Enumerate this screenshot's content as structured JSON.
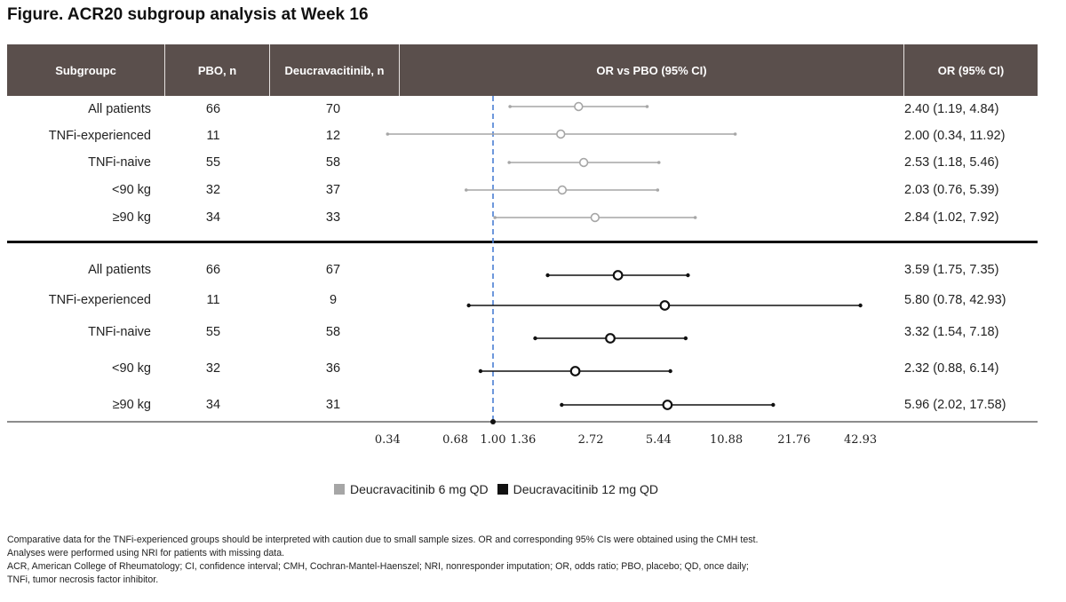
{
  "title": "Figure. ACR20 subgroup analysis at Week 16",
  "header": {
    "subgroup": "Subgroupc",
    "pbo": "PBO, n",
    "deucra": "Deucravacitinib, n",
    "plot": "OR vs PBO (95% CI)",
    "orci": "OR (95% CI)"
  },
  "rows_6mg": [
    {
      "subgroup": "All patients",
      "pbo": "66",
      "deucra": "70",
      "orci": "2.40 (1.19, 4.84)"
    },
    {
      "subgroup": "TNFi-experienced",
      "pbo": "11",
      "deucra": "12",
      "orci": "2.00 (0.34, 11.92)"
    },
    {
      "subgroup": "TNFi-naive",
      "pbo": "55",
      "deucra": "58",
      "orci": "2.53 (1.18, 5.46)"
    },
    {
      "subgroup": "<90 kg",
      "pbo": "32",
      "deucra": "37",
      "orci": "2.03 (0.76, 5.39)"
    },
    {
      "subgroup": "≥90 kg",
      "pbo": "34",
      "deucra": "33",
      "orci": "2.84 (1.02, 7.92)"
    }
  ],
  "rows_12mg": [
    {
      "subgroup": "All patients",
      "pbo": "66",
      "deucra": "67",
      "orci": "3.59 (1.75, 7.35)"
    },
    {
      "subgroup": "TNFi-experienced",
      "pbo": "11",
      "deucra": "9",
      "orci": "5.80 (0.78, 42.93)"
    },
    {
      "subgroup": "TNFi-naive",
      "pbo": "55",
      "deucra": "58",
      "orci": "3.32 (1.54, 7.18)"
    },
    {
      "subgroup": "<90 kg",
      "pbo": "32",
      "deucra": "36",
      "orci": "2.32 (0.88, 6.14)"
    },
    {
      "subgroup": "≥90 kg",
      "pbo": "34",
      "deucra": "31",
      "orci": "5.96 (2.02, 17.58)"
    }
  ],
  "legend": {
    "item1": "Deucravacitinib 6 mg QD",
    "item2": "Deucravacitinib 12 mg QD"
  },
  "footnote": {
    "line1": "Comparative data for the TNFi-experienced groups should be interpreted with caution due to small sample sizes.  OR and corresponding 95% CIs were obtained using the CMH test.",
    "line2": "Analyses were performed using NRI for patients with missing data.",
    "line3": "ACR, American College of Rheumatology; CI, confidence interval; CMH, Cochran-Mantel-Haenszel; NRI, nonresponder imputation; OR, odds ratio; PBO, placebo; QD, once daily;",
    "line4": "TNFi, tumor necrosis factor inhibitor."
  },
  "colors": {
    "header_bg": "#5a4f4c",
    "series_6mg": "#a6a6a6",
    "series_12mg": "#111111",
    "reference_line": "#4a7fd4"
  },
  "chart_data": {
    "type": "forest",
    "xscale": "log",
    "reference": 1.0,
    "xticks": [
      0.34,
      0.68,
      1.0,
      1.36,
      2.72,
      5.44,
      10.88,
      21.76,
      42.93
    ],
    "xtick_labels": [
      "0.34",
      "0.68",
      "1.00",
      "1.36",
      "2.72",
      "5.44",
      "10.88",
      "21.76",
      "42.93"
    ],
    "series": [
      {
        "name": "Deucravacitinib 6 mg QD",
        "points": [
          {
            "label": "All patients",
            "or": 2.4,
            "lo": 1.19,
            "hi": 4.84
          },
          {
            "label": "TNFi-experienced",
            "or": 2.0,
            "lo": 0.34,
            "hi": 11.92
          },
          {
            "label": "TNFi-naive",
            "or": 2.53,
            "lo": 1.18,
            "hi": 5.46
          },
          {
            "label": "<90 kg",
            "or": 2.03,
            "lo": 0.76,
            "hi": 5.39
          },
          {
            "label": "≥90 kg",
            "or": 2.84,
            "lo": 1.02,
            "hi": 7.92
          }
        ]
      },
      {
        "name": "Deucravacitinib 12 mg QD",
        "points": [
          {
            "label": "All patients",
            "or": 3.59,
            "lo": 1.75,
            "hi": 7.35
          },
          {
            "label": "TNFi-experienced",
            "or": 5.8,
            "lo": 0.78,
            "hi": 42.93
          },
          {
            "label": "TNFi-naive",
            "or": 3.32,
            "lo": 1.54,
            "hi": 7.18
          },
          {
            "label": "<90 kg",
            "or": 2.32,
            "lo": 0.88,
            "hi": 6.14
          },
          {
            "label": "≥90 kg",
            "or": 5.96,
            "lo": 2.02,
            "hi": 17.58
          }
        ]
      }
    ]
  }
}
